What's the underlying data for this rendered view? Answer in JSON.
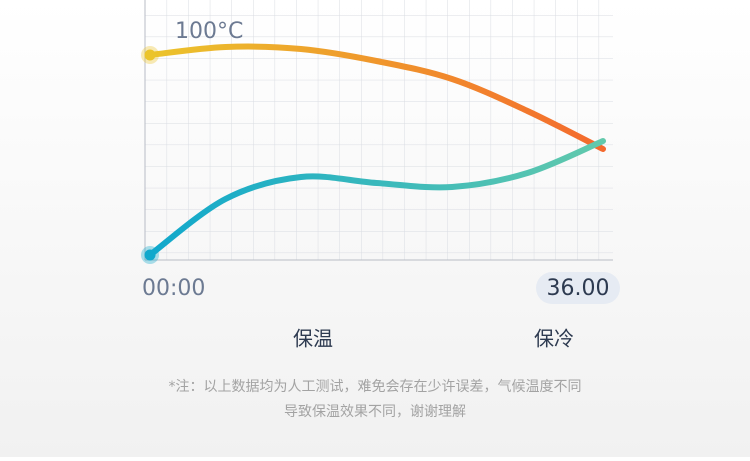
{
  "chart_data": {
    "type": "line",
    "annotation": "100°C",
    "x": [
      0,
      6,
      12,
      18,
      24,
      30,
      36
    ],
    "xlim": [
      0,
      36
    ],
    "xticks": [
      {
        "value": 0,
        "label": "00:00"
      },
      {
        "value": 36,
        "label": "36.00"
      }
    ],
    "ylim": [
      0,
      125
    ],
    "series": [
      {
        "name": "保温",
        "color": [
          "#ebc42c",
          "#f4692d"
        ],
        "values": [
          100,
          104,
          103,
          97,
          88,
          72,
          53
        ]
      },
      {
        "name": "保冷",
        "color": [
          "#10a8cc",
          "#62c9ac"
        ],
        "values": [
          0,
          28,
          39,
          36,
          34,
          41,
          57
        ]
      }
    ],
    "footnote": [
      "*注：以上数据均为人工测试，难免会存在少许误差，气候温度不同",
      "导致保温效果不同，谢谢理解"
    ]
  }
}
